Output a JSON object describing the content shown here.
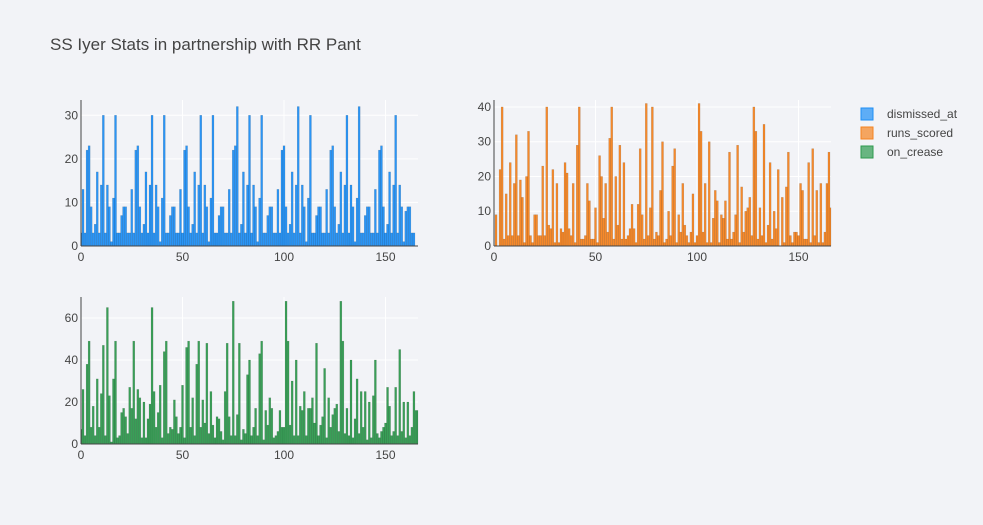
{
  "chart_data": {
    "type": "bar",
    "title": "SS Iyer Stats in partnership with RR Pant",
    "legend_position": "top-right",
    "x_ticks": [
      0,
      50,
      100,
      150
    ],
    "xlim": [
      0,
      166
    ],
    "series": [
      {
        "name": "dismissed_at",
        "color": "#1f8ff5",
        "y_ticks": [
          0,
          10,
          20,
          30
        ],
        "ylim": [
          0,
          33.5
        ],
        "values": [
          3,
          13,
          3,
          22,
          23,
          9,
          3,
          5,
          17,
          3,
          14,
          30,
          3,
          14,
          9,
          1,
          11,
          30,
          3,
          3,
          7,
          9,
          9,
          3,
          3,
          13,
          3,
          22,
          23,
          9,
          3,
          5,
          17,
          3,
          14,
          30,
          3,
          14,
          9,
          1,
          11,
          30,
          3,
          3,
          7,
          9,
          9,
          3,
          3,
          13,
          3,
          22,
          23,
          9,
          3,
          5,
          17,
          3,
          14,
          30,
          3,
          14,
          9,
          1,
          11,
          30,
          3,
          3,
          7,
          9,
          9,
          3,
          3,
          13,
          3,
          22,
          23,
          32,
          3,
          5,
          17,
          3,
          14,
          30,
          3,
          14,
          9,
          1,
          11,
          30,
          3,
          3,
          7,
          9,
          9,
          3,
          3,
          13,
          3,
          22,
          23,
          9,
          3,
          5,
          17,
          3,
          14,
          32,
          3,
          14,
          9,
          1,
          11,
          30,
          3,
          3,
          7,
          9,
          9,
          3,
          3,
          13,
          3,
          22,
          23,
          9,
          3,
          5,
          17,
          3,
          14,
          30,
          3,
          14,
          9,
          1,
          11,
          32,
          3,
          3,
          7,
          9,
          9,
          3,
          3,
          13,
          3,
          22,
          23,
          9,
          3,
          5,
          17,
          3,
          14,
          30,
          3,
          14,
          9,
          1,
          8,
          9,
          9,
          3,
          3
        ]
      },
      {
        "name": "runs_scored",
        "color": "#f5831f",
        "y_ticks": [
          0,
          10,
          20,
          30,
          40
        ],
        "ylim": [
          0,
          42
        ],
        "values": [
          0,
          9,
          0,
          22,
          40,
          2,
          15,
          3,
          24,
          3,
          18,
          32,
          3,
          19,
          14,
          1,
          20,
          33,
          3,
          1,
          9,
          9,
          3,
          3,
          23,
          3,
          40,
          6,
          5,
          22,
          1,
          18,
          1,
          5,
          4,
          24,
          21,
          5,
          3,
          18,
          1,
          29,
          40,
          2,
          2,
          3,
          18,
          13,
          2,
          2,
          11,
          1,
          26,
          20,
          8,
          18,
          4,
          31,
          40,
          2,
          20,
          6,
          29,
          2,
          24,
          2,
          3,
          5,
          12,
          5,
          1,
          12,
          28,
          9,
          2,
          41,
          3,
          11,
          40,
          2,
          4,
          3,
          16,
          30,
          1,
          2,
          10,
          3,
          23,
          28,
          1,
          9,
          4,
          18,
          6,
          3,
          1,
          4,
          15,
          1,
          3,
          41,
          33,
          4,
          18,
          1,
          30,
          1,
          8,
          16,
          13,
          1,
          9,
          8,
          13,
          2,
          27,
          2,
          4,
          9,
          29,
          1,
          17,
          4,
          10,
          11,
          14,
          3,
          40,
          33,
          2,
          11,
          3,
          35,
          1,
          6,
          24,
          2,
          10,
          5,
          22,
          0,
          14,
          1,
          17,
          27,
          3,
          1,
          4,
          4,
          3,
          18,
          16,
          2,
          2,
          24,
          1,
          28,
          3,
          16,
          1,
          18,
          1,
          4,
          18,
          27,
          11,
          4,
          8
        ]
      },
      {
        "name": "on_crease",
        "color": "#2e9a4e",
        "y_ticks": [
          0,
          20,
          40,
          60
        ],
        "ylim": [
          0,
          70
        ],
        "values": [
          7,
          26,
          4,
          38,
          49,
          8,
          18,
          4,
          31,
          8,
          24,
          47,
          4,
          65,
          23,
          1,
          31,
          49,
          3,
          4,
          15,
          17,
          13,
          5,
          27,
          17,
          49,
          12,
          26,
          22,
          3,
          20,
          3,
          12,
          19,
          65,
          25,
          8,
          15,
          28,
          3,
          44,
          49,
          5,
          8,
          7,
          21,
          13,
          5,
          8,
          28,
          3,
          46,
          49,
          8,
          22,
          4,
          38,
          49,
          8,
          21,
          10,
          48,
          5,
          25,
          9,
          3,
          13,
          12,
          6,
          2,
          25,
          48,
          13,
          4,
          68,
          4,
          14,
          48,
          2,
          7,
          5,
          33,
          40,
          4,
          8,
          17,
          4,
          43,
          49,
          2,
          16,
          9,
          22,
          17,
          3,
          4,
          6,
          16,
          8,
          8,
          68,
          49,
          9,
          30,
          4,
          40,
          4,
          18,
          16,
          25,
          4,
          17,
          17,
          22,
          10,
          48,
          4,
          9,
          13,
          36,
          3,
          22,
          8,
          14,
          17,
          19,
          6,
          68,
          49,
          5,
          17,
          4,
          40,
          3,
          12,
          31,
          5,
          25,
          8,
          25,
          2,
          20,
          3,
          23,
          40,
          5,
          3,
          6,
          8,
          10,
          27,
          18,
          4,
          6,
          27,
          4,
          45,
          6,
          20,
          3,
          20,
          4,
          8,
          25,
          16,
          16,
          7,
          16
        ]
      }
    ]
  }
}
